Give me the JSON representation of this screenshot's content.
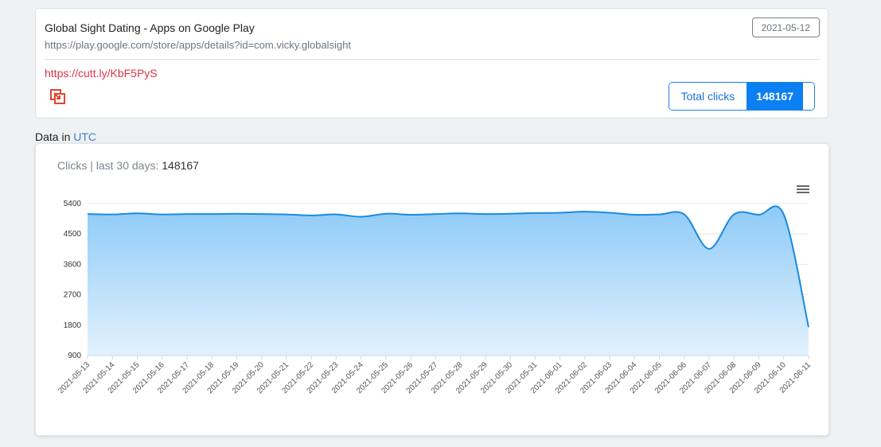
{
  "link": {
    "title": "Global Sight Dating - Apps on Google Play",
    "long_url": "https://play.google.com/store/apps/details?id=com.vicky.globalsight",
    "date": "2021-05-12",
    "short_url": "https://cutt.ly/KbF5PyS",
    "copy_icon": "copy-icon",
    "total_clicks_label": "Total clicks",
    "total_clicks_value": "148167"
  },
  "timezone": {
    "prefix": "Data in",
    "zone": "UTC"
  },
  "chart": {
    "title_prefix": "Clicks | last 30 days:",
    "title_value": "148167",
    "menu_icon": "hamburger-menu-icon"
  },
  "colors": {
    "line": "#1a8ae0",
    "area_top": "#8ecbf8",
    "area_bottom": "#e3f1fd",
    "short_link": "#dc3545",
    "accent": "#0c7ff2"
  },
  "chart_data": {
    "type": "area",
    "title": "Clicks | last 30 days: 148167",
    "xlabel": "",
    "ylabel": "",
    "ylim": [
      900,
      5400
    ],
    "yticks": [
      900,
      1800,
      2700,
      3600,
      4500,
      5400
    ],
    "grid": true,
    "legend": "none",
    "categories": [
      "2021-05-13",
      "2021-05-14",
      "2021-05-15",
      "2021-05-16",
      "2021-05-17",
      "2021-05-18",
      "2021-05-19",
      "2021-05-20",
      "2021-05-21",
      "2021-05-22",
      "2021-05-23",
      "2021-05-24",
      "2021-05-25",
      "2021-05-26",
      "2021-05-27",
      "2021-05-28",
      "2021-05-29",
      "2021-05-30",
      "2021-05-31",
      "2021-06-01",
      "2021-06-02",
      "2021-06-03",
      "2021-06-04",
      "2021-06-05",
      "2021-06-06",
      "2021-06-07",
      "2021-06-08",
      "2021-06-09",
      "2021-06-10",
      "2021-06-11"
    ],
    "series": [
      {
        "name": "Clicks",
        "values": [
          5090,
          5080,
          5110,
          5080,
          5090,
          5090,
          5100,
          5090,
          5080,
          5050,
          5080,
          5010,
          5100,
          5070,
          5090,
          5110,
          5090,
          5100,
          5120,
          5130,
          5160,
          5130,
          5070,
          5080,
          5080,
          4060,
          5080,
          5070,
          5080,
          1740
        ]
      }
    ]
  }
}
